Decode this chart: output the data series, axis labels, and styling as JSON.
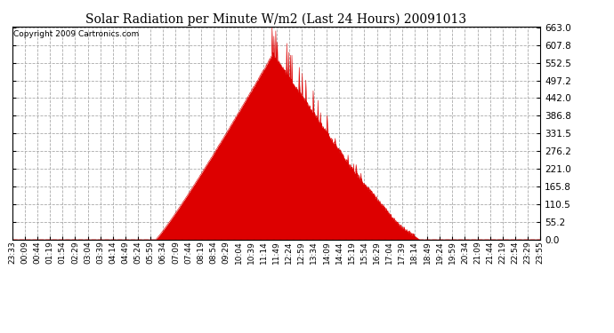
{
  "title": "Solar Radiation per Minute W/m2 (Last 24 Hours) 20091013",
  "copyright": "Copyright 2009 Cartronics.com",
  "ymin": 0.0,
  "ymax": 663.0,
  "yticks": [
    0.0,
    55.2,
    110.5,
    165.8,
    221.0,
    276.2,
    331.5,
    386.8,
    442.0,
    497.2,
    552.5,
    607.8,
    663.0
  ],
  "fill_color": "#dd0000",
  "line_color": "#dd0000",
  "background_color": "#ffffff",
  "grid_color": "#aaaaaa",
  "zero_line_color": "#ff0000",
  "figsize": [
    6.9,
    3.75
  ],
  "dpi": 100,
  "xtick_labels": [
    "23:33",
    "00:09",
    "00:44",
    "01:19",
    "01:54",
    "02:29",
    "03:04",
    "03:39",
    "04:14",
    "04:49",
    "05:24",
    "05:59",
    "06:34",
    "07:09",
    "07:44",
    "08:19",
    "08:54",
    "09:29",
    "10:04",
    "10:39",
    "11:14",
    "11:49",
    "12:24",
    "12:59",
    "13:34",
    "14:09",
    "14:44",
    "15:19",
    "15:54",
    "16:29",
    "17:04",
    "17:39",
    "18:14",
    "18:49",
    "19:24",
    "19:59",
    "20:34",
    "21:09",
    "21:44",
    "22:19",
    "22:54",
    "23:29",
    "23:55"
  ],
  "sunrise_minute": 390,
  "sunset_minute": 1110,
  "peak_minute": 710,
  "peak_value": 580,
  "n_points": 1440
}
